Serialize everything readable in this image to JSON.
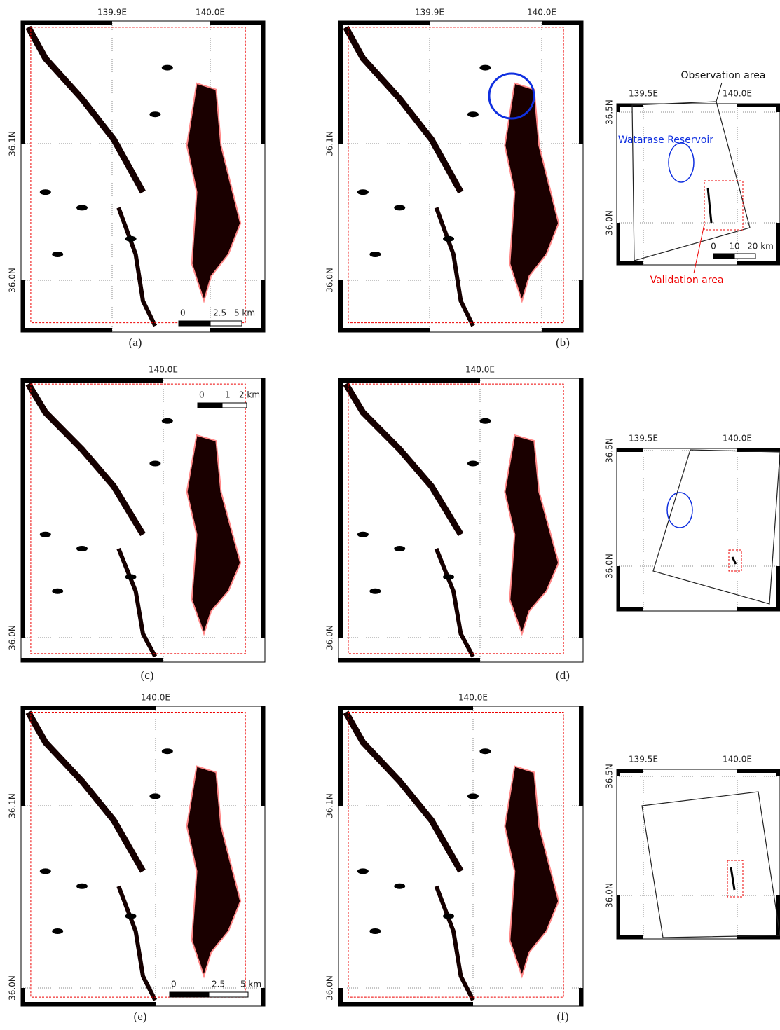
{
  "panels": [
    {
      "label": "(a)",
      "x_labels": [
        "139.9E",
        "140.0E"
      ],
      "y_labels": [
        "36.1N",
        "36.0N"
      ],
      "scale_labels": [
        "0",
        "2.5",
        "5 km"
      ]
    },
    {
      "label": "(b)",
      "x_labels": [
        "139.9E",
        "140.0E"
      ],
      "y_labels": [
        "36.1N",
        "36.0N"
      ]
    },
    {
      "label": "(c)",
      "x_labels": [
        "140.0E"
      ],
      "y_labels": [
        "36.0N"
      ],
      "scale_labels": [
        "0",
        "1",
        "2 km"
      ]
    },
    {
      "label": "(d)",
      "x_labels": [
        "140.0E"
      ],
      "y_labels": [
        "36.0N"
      ]
    },
    {
      "label": "(e)",
      "x_labels": [
        "140.0E"
      ],
      "y_labels": [
        "36.1N",
        "36.0N"
      ],
      "scale_labels": [
        "0",
        "2.5",
        "5 km"
      ]
    },
    {
      "label": "(f)",
      "x_labels": [
        "140.0E"
      ],
      "y_labels": [
        "36.1N",
        "36.0N"
      ]
    }
  ],
  "insets": [
    {
      "x_labels": [
        "139.5E",
        "140.0E"
      ],
      "y_labels": [
        "36.5N",
        "36.0N"
      ],
      "annotations": [
        "Observation area",
        "Watarase Reservoir",
        "Validation area"
      ],
      "scale_labels": [
        "0",
        "10",
        "20 km"
      ]
    },
    {
      "x_labels": [
        "139.5E",
        "140.0E"
      ],
      "y_labels": [
        "36.5N",
        "36.0N"
      ]
    },
    {
      "x_labels": [
        "139.5E",
        "140.0E"
      ],
      "y_labels": [
        "36.5N",
        "36.0N"
      ]
    }
  ]
}
